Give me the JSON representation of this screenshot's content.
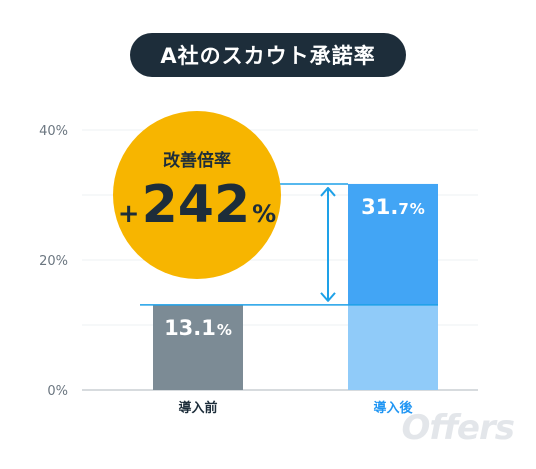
{
  "title": "A社のスカウト承諾率",
  "watermark": "Offers",
  "improvement": {
    "label": "改善倍率",
    "sign": "+",
    "value": "242",
    "unit": "%",
    "color": "#f7b500"
  },
  "chart_data": {
    "type": "bar",
    "categories": [
      "導入前",
      "導入後"
    ],
    "values": [
      13.1,
      31.7
    ],
    "value_labels": [
      {
        "number": "13.1",
        "decimal": "",
        "unit": "%"
      },
      {
        "number": "31.",
        "decimal": "7",
        "unit": "%"
      }
    ],
    "ylim": [
      0,
      40
    ],
    "yticks": [
      0,
      20,
      40
    ],
    "ytick_labels": [
      "0%",
      "20%",
      "40%"
    ],
    "grid": true,
    "colors": {
      "before": "#7c8b95",
      "after_base": "#90cbf9",
      "after_gain": "#42a5f5",
      "category_after": "#2196f3",
      "guide_line": "#1ea1e8"
    }
  }
}
